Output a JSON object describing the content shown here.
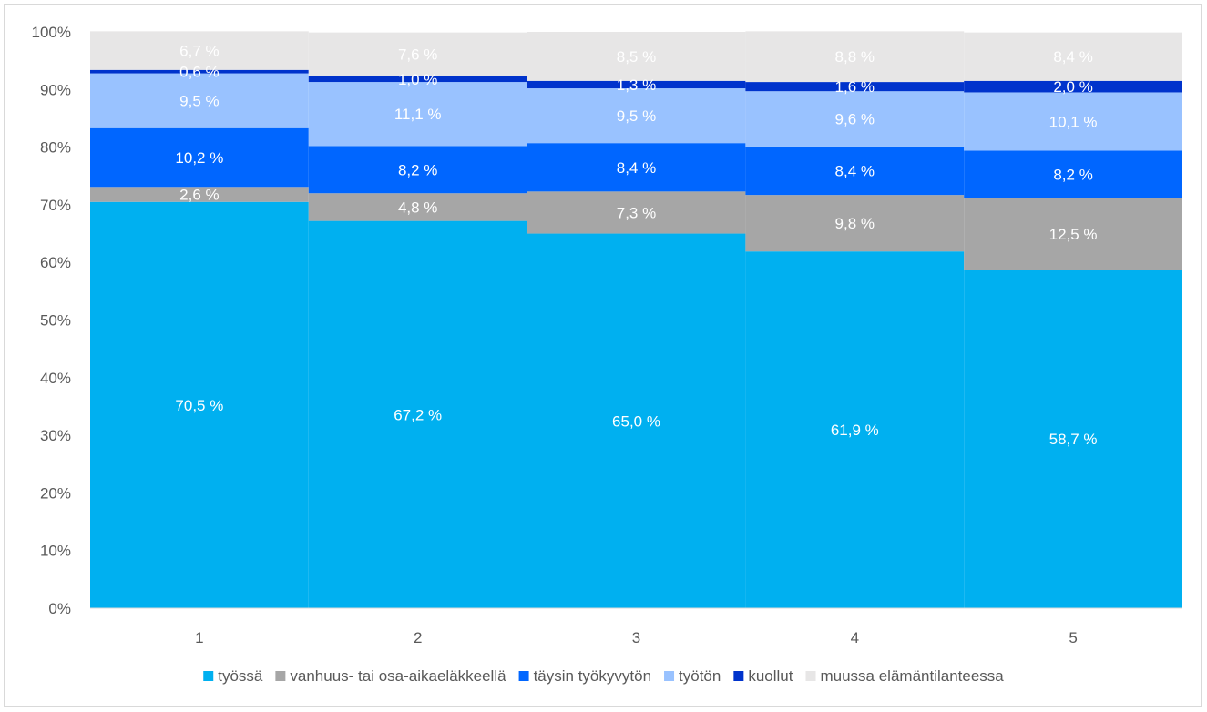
{
  "chart_data": {
    "type": "bar",
    "stacked": true,
    "categories": [
      "1",
      "2",
      "3",
      "4",
      "5"
    ],
    "series": [
      {
        "name": "työssä",
        "color": "#00B0F0",
        "values": [
          70.5,
          67.2,
          65.0,
          61.9,
          58.7
        ],
        "labels": [
          "70,5 %",
          "67,2 %",
          "65,0 %",
          "61,9 %",
          "58,7 %"
        ]
      },
      {
        "name": "vanhuus- tai osa-aikaeläkkeellä",
        "color": "#A6A6A6",
        "values": [
          2.6,
          4.8,
          7.3,
          9.8,
          12.5
        ],
        "labels": [
          "2,6 %",
          "4,8 %",
          "7,3 %",
          "9,8 %",
          "12,5 %"
        ]
      },
      {
        "name": "täysin työkyvytön",
        "color": "#0066FF",
        "values": [
          10.2,
          8.2,
          8.4,
          8.4,
          8.2
        ],
        "labels": [
          "10,2 %",
          "8,2 %",
          "8,4 %",
          "8,4 %",
          "8,2 %"
        ]
      },
      {
        "name": "työtön",
        "color": "#99C2FF",
        "values": [
          9.5,
          11.1,
          9.5,
          9.6,
          10.1
        ],
        "labels": [
          "9,5 %",
          "11,1 %",
          "9,5 %",
          "9,6 %",
          "10,1 %"
        ]
      },
      {
        "name": "kuollut",
        "color": "#0033CC",
        "values": [
          0.6,
          1.0,
          1.3,
          1.6,
          2.0
        ],
        "labels": [
          "0,6 %",
          "1,0 %",
          "1,3 %",
          "1,6 %",
          "2,0 %"
        ]
      },
      {
        "name": "muussa elämäntilanteessa",
        "color": "#E7E6E6",
        "values": [
          6.7,
          7.6,
          8.5,
          8.8,
          8.4
        ],
        "labels": [
          "6,7 %",
          "7,6 %",
          "8,5 %",
          "8,8 %",
          "8,4 %"
        ]
      }
    ],
    "y_ticks": [
      "0%",
      "10%",
      "20%",
      "30%",
      "40%",
      "50%",
      "60%",
      "70%",
      "80%",
      "90%",
      "100%"
    ],
    "ylim": [
      0,
      100
    ],
    "grid": false,
    "legend": "bottom"
  }
}
